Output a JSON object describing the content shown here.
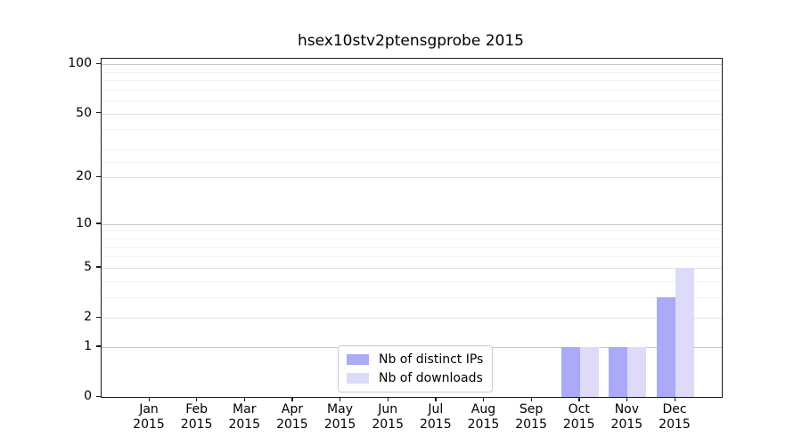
{
  "chart_data": {
    "type": "bar",
    "title": "hsex10stv2ptensgprobe 2015",
    "year": "2015",
    "categories": [
      "Jan",
      "Feb",
      "Mar",
      "Apr",
      "May",
      "Jun",
      "Jul",
      "Aug",
      "Sep",
      "Oct",
      "Nov",
      "Dec"
    ],
    "series": [
      {
        "name": "Nb of distinct IPs",
        "color": "#aaaaf8",
        "values": [
          0,
          0,
          0,
          0,
          0,
          0,
          0,
          0,
          0,
          1,
          1,
          3
        ]
      },
      {
        "name": "Nb of downloads",
        "color": "#dcdcf8",
        "values": [
          0,
          0,
          0,
          0,
          0,
          0,
          0,
          0,
          0,
          1,
          1,
          5
        ]
      }
    ],
    "scale": "log1p",
    "ylabel": "",
    "xlabel": "",
    "ylim": [
      0,
      107
    ],
    "yticks": [
      0,
      1,
      2,
      5,
      10,
      20,
      50,
      100
    ],
    "yticks_minor": [
      3,
      4,
      6,
      7,
      8,
      9,
      25,
      30,
      40,
      60,
      70,
      80,
      90
    ],
    "grid": "horizontal",
    "legend_position": "bottom-center"
  }
}
